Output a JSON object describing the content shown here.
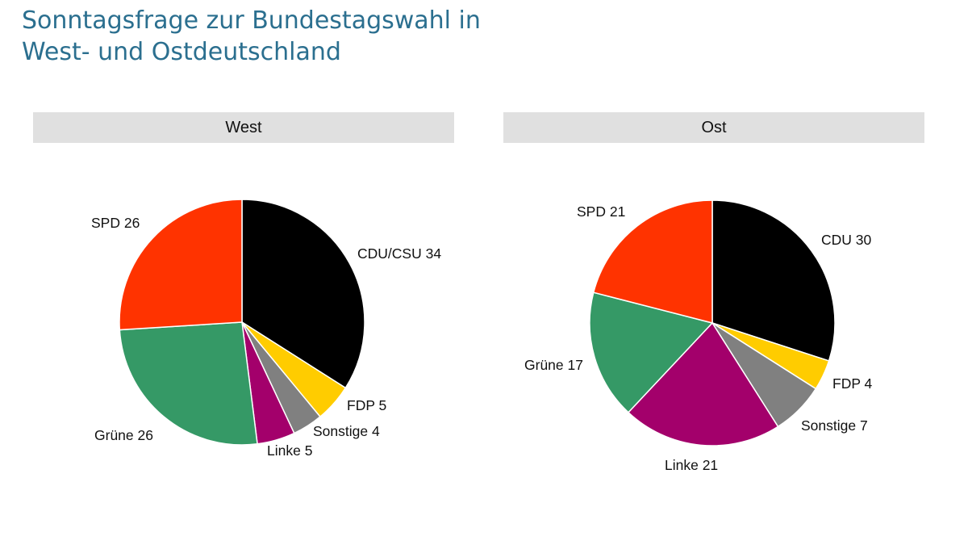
{
  "title_line1": "Sonntagsfrage zur Bundestagswahl in",
  "title_line2": "West- und Ostdeutschland",
  "colors": {
    "CDU": "#000000",
    "FDP": "#FFCC00",
    "Sonstige": "#808080",
    "Linke": "#A3006B",
    "Grüne": "#359966",
    "SPD": "#FF3300"
  },
  "chart_data": [
    {
      "type": "pie",
      "title": "West",
      "slices": [
        {
          "label": "CDU/CSU 34",
          "party": "CDU",
          "value": 34
        },
        {
          "label": "FDP 5",
          "party": "FDP",
          "value": 5
        },
        {
          "label": "Sonstige 4",
          "party": "Sonstige",
          "value": 4
        },
        {
          "label": "Linke 5",
          "party": "Linke",
          "value": 5
        },
        {
          "label": "Grüne 26",
          "party": "Grüne",
          "value": 26
        },
        {
          "label": "SPD 26",
          "party": "SPD",
          "value": 26
        }
      ]
    },
    {
      "type": "pie",
      "title": "Ost",
      "slices": [
        {
          "label": "CDU 30",
          "party": "CDU",
          "value": 30
        },
        {
          "label": "FDP 4",
          "party": "FDP",
          "value": 4
        },
        {
          "label": "Sonstige 7",
          "party": "Sonstige",
          "value": 7
        },
        {
          "label": "Linke 21",
          "party": "Linke",
          "value": 21
        },
        {
          "label": "Grüne 17",
          "party": "Grüne",
          "value": 17
        },
        {
          "label": "SPD 21",
          "party": "SPD",
          "value": 21
        }
      ]
    }
  ]
}
